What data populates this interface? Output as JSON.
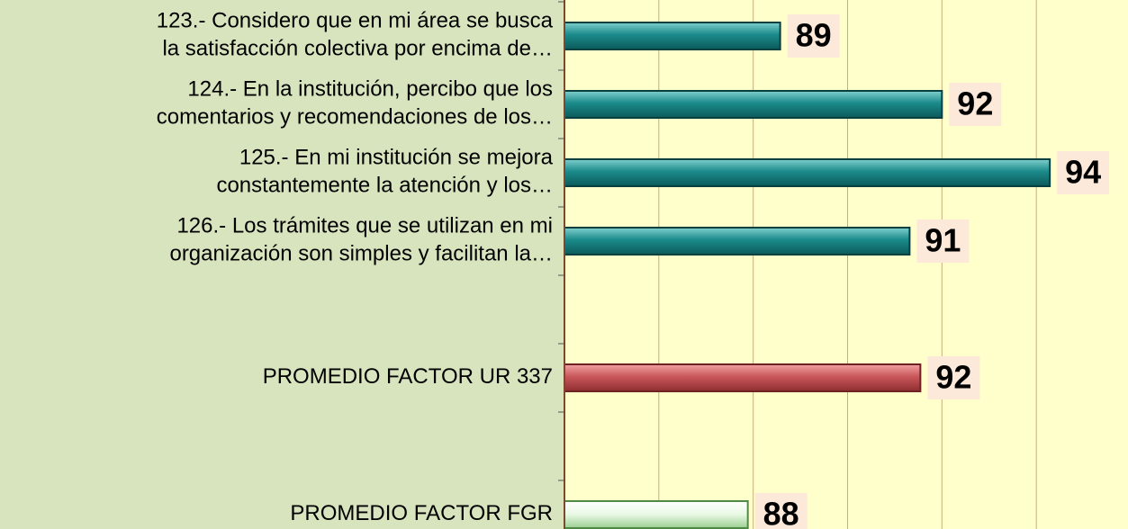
{
  "chart_data": {
    "type": "bar",
    "orientation": "horizontal",
    "categories": [
      [
        "123.- Considero que en mi área se busca",
        "la satisfacción colectiva por encima de…"
      ],
      [
        "124.- En la institución, percibo que los",
        "comentarios y recomendaciones de los…"
      ],
      [
        "125.- En mi institución se mejora",
        "constantemente la atención y los…"
      ],
      [
        "126.- Los trámites que se utilizan en mi",
        "organización son simples y facilitan la…"
      ],
      null,
      [
        "PROMEDIO FACTOR UR 337"
      ],
      null,
      [
        "PROMEDIO FACTOR FGR"
      ]
    ],
    "values": [
      89,
      92,
      94,
      91.4,
      null,
      91.6,
      null,
      88.4
    ],
    "value_labels": [
      "89",
      "92",
      "94",
      "91",
      null,
      "92",
      null,
      "88"
    ],
    "colors": [
      "#1b8b8b",
      "#1b8b8b",
      "#1b8b8b",
      "#1b8b8b",
      null,
      "#c9575a",
      null,
      "#e8f8e4"
    ],
    "xlim": [
      85,
      95.45
    ],
    "xticks": [
      85,
      86.75,
      88.5,
      90.25,
      92,
      93.75
    ],
    "grid": true
  }
}
